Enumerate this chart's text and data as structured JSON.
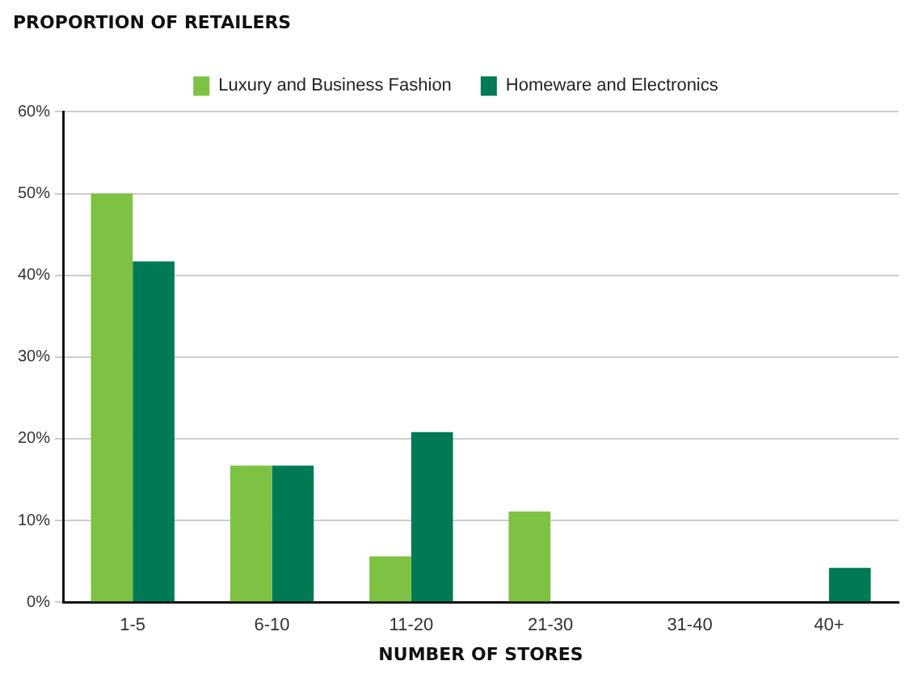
{
  "chart_data": {
    "type": "bar",
    "title": "PROPORTION OF RETAILERS",
    "xlabel": "NUMBER OF STORES",
    "categories": [
      "1-5",
      "6-10",
      "11-20",
      "21-30",
      "31-40",
      "40+"
    ],
    "series": [
      {
        "name": "Luxury and Business Fashion",
        "color": "#7dc242",
        "values": [
          50,
          16.7,
          5.6,
          11.1,
          0,
          0
        ]
      },
      {
        "name": "Homeware and Electronics",
        "color": "#007a55",
        "values": [
          41.7,
          16.7,
          20.8,
          0,
          0,
          4.2
        ]
      }
    ],
    "ylim": [
      0,
      60
    ],
    "yticks": [
      {
        "value": 0,
        "label": "0%"
      },
      {
        "value": 10,
        "label": "10%"
      },
      {
        "value": 20,
        "label": "20%"
      },
      {
        "value": 30,
        "label": "30%"
      },
      {
        "value": 40,
        "label": "40%"
      },
      {
        "value": 50,
        "label": "50%"
      },
      {
        "value": 60,
        "label": "60%"
      }
    ],
    "grid": "y",
    "legend": "top"
  }
}
